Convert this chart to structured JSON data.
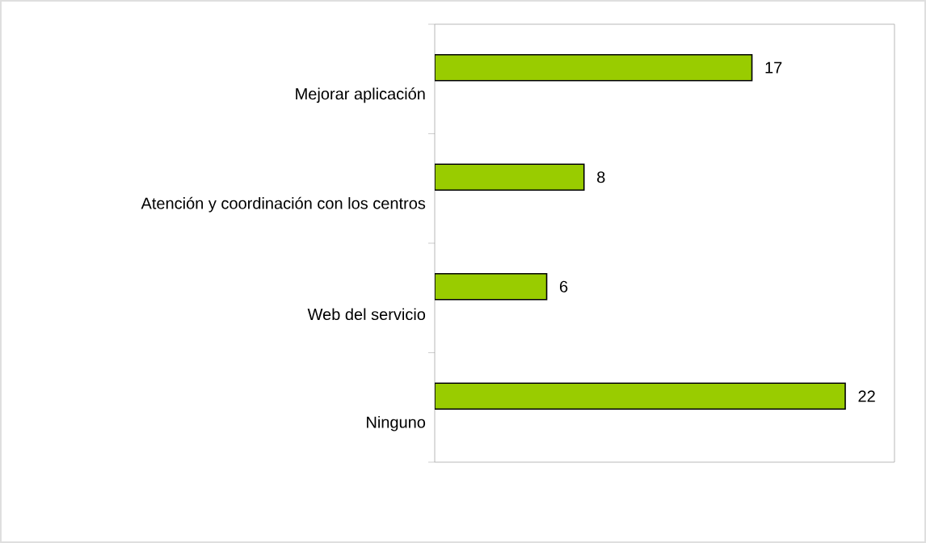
{
  "chart_data": {
    "type": "bar",
    "orientation": "horizontal",
    "categories": [
      "Mejorar aplicación",
      "Atención y coordinación con los centros",
      "Web del servicio",
      "Ninguno"
    ],
    "values": [
      17,
      8,
      6,
      22
    ],
    "color": "#99cc00",
    "data_labels": true
  }
}
